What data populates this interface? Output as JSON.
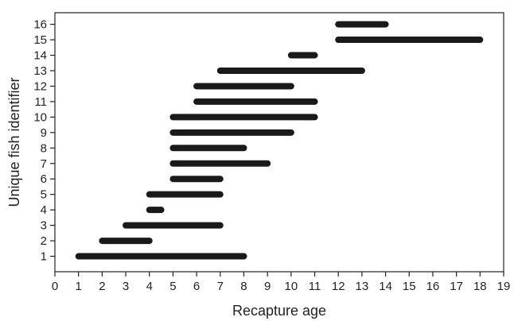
{
  "chart_data": {
    "type": "range-bar",
    "title": "",
    "xlabel": "Recapture age",
    "ylabel": "Unique fish identifier",
    "xlim": [
      0,
      19
    ],
    "ylim": [
      0,
      16
    ],
    "x_ticks": [
      0,
      1,
      2,
      3,
      4,
      5,
      6,
      7,
      8,
      9,
      10,
      11,
      12,
      13,
      14,
      15,
      16,
      17,
      18,
      19
    ],
    "y_ticks": [
      1,
      2,
      3,
      4,
      5,
      6,
      7,
      8,
      9,
      10,
      11,
      12,
      13,
      14,
      15,
      16
    ],
    "grid": false,
    "legend": "none",
    "bar_color": "#1a1a1a",
    "ranges": [
      {
        "fish": 1,
        "start": 1,
        "end": 8
      },
      {
        "fish": 2,
        "start": 2,
        "end": 4
      },
      {
        "fish": 3,
        "start": 3,
        "end": 7
      },
      {
        "fish": 4,
        "start": 4,
        "end": 4.5
      },
      {
        "fish": 5,
        "start": 4,
        "end": 7
      },
      {
        "fish": 6,
        "start": 5,
        "end": 7
      },
      {
        "fish": 7,
        "start": 5,
        "end": 9
      },
      {
        "fish": 8,
        "start": 5,
        "end": 8
      },
      {
        "fish": 9,
        "start": 5,
        "end": 10
      },
      {
        "fish": 10,
        "start": 5,
        "end": 11
      },
      {
        "fish": 11,
        "start": 6,
        "end": 11
      },
      {
        "fish": 12,
        "start": 6,
        "end": 10
      },
      {
        "fish": 13,
        "start": 7,
        "end": 13
      },
      {
        "fish": 14,
        "start": 10,
        "end": 11
      },
      {
        "fish": 15,
        "start": 12,
        "end": 18
      },
      {
        "fish": 16,
        "start": 12,
        "end": 14
      }
    ]
  }
}
